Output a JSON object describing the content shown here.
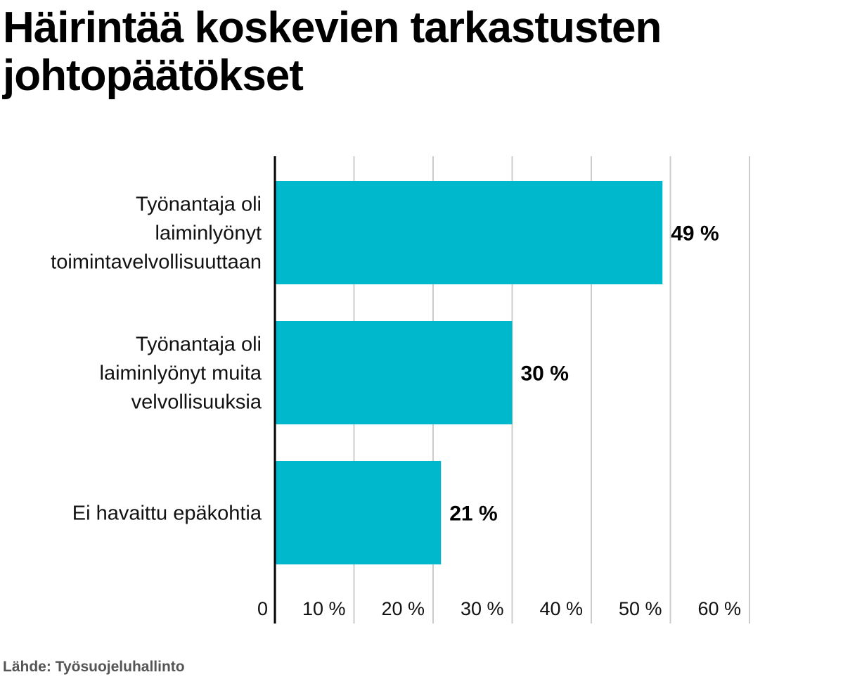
{
  "chart_data": {
    "type": "bar",
    "orientation": "horizontal",
    "title": "Häirintää koskevien tarkastusten johtopäätökset",
    "categories": [
      [
        "Työnantaja oli",
        "laiminlyönyt",
        "toimintavelvollisuuttaan"
      ],
      [
        "Työnantaja oli",
        "laiminlyönyt muita",
        "velvollisuuksia"
      ],
      [
        "Ei havaittu epäkohtia"
      ]
    ],
    "values": [
      49,
      30,
      21
    ],
    "value_labels": [
      "49 %",
      "30 %",
      "21 %"
    ],
    "xlim": [
      0,
      60
    ],
    "x_ticks": [
      0,
      10,
      20,
      30,
      40,
      50,
      60
    ],
    "x_tick_labels": [
      "0",
      "10 %",
      "20 %",
      "30 %",
      "40 %",
      "50 %",
      "60 %"
    ],
    "grid": true,
    "bar_color": "#00b8cc",
    "grid_color": "#cccccc",
    "axis_color": "#000000"
  },
  "source": "Lähde: Työsuojeluhallinto"
}
